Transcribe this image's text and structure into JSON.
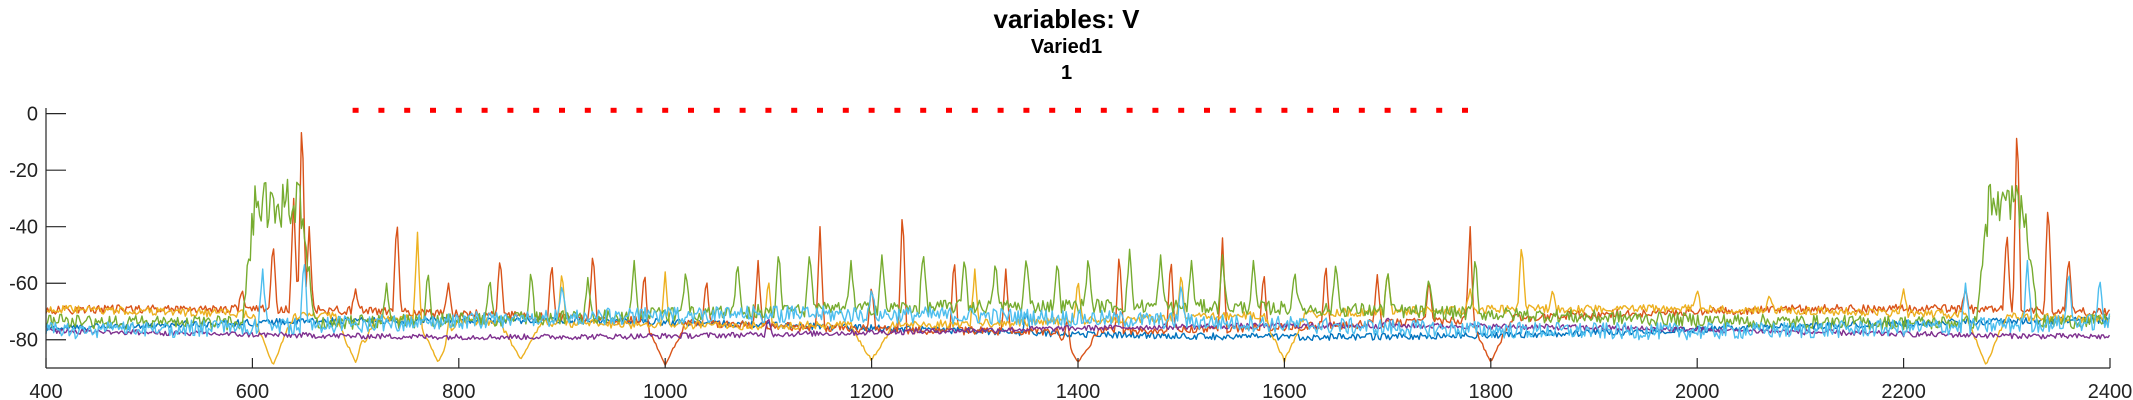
{
  "chart_data": {
    "type": "line",
    "title": "variables: V",
    "subtitle": "Varied1",
    "subtitle2": "1",
    "xlabel": "",
    "ylabel": "",
    "xlim": [
      400,
      2400
    ],
    "ylim": [
      -90,
      2
    ],
    "x_ticks": [
      400,
      600,
      800,
      1000,
      1200,
      1400,
      1600,
      1800,
      2000,
      2200,
      2400
    ],
    "y_ticks": [
      0,
      -20,
      -40,
      -60,
      -80
    ],
    "grid": false,
    "legend": "none",
    "stimulus_markers": {
      "color": "#ff0000",
      "y": 1,
      "start": 700,
      "end": 1780,
      "step": 25
    },
    "series": [
      {
        "color": "#0072bd",
        "baseline": -76,
        "drift": 3,
        "noise": 1.2,
        "bursts": [],
        "spikes": [
          [
            880,
            -72
          ],
          [
            1350,
            -70
          ]
        ]
      },
      {
        "color": "#d95319",
        "baseline": -73,
        "drift": 4,
        "noise": 1.5,
        "bursts": [],
        "spikes": [
          [
            590,
            -62
          ],
          [
            620,
            -45
          ],
          [
            640,
            -30
          ],
          [
            648,
            2
          ],
          [
            655,
            -40
          ],
          [
            700,
            -62
          ],
          [
            740,
            -36
          ],
          [
            790,
            -60
          ],
          [
            840,
            -50
          ],
          [
            890,
            -52
          ],
          [
            930,
            -48
          ],
          [
            980,
            -55
          ],
          [
            1040,
            -58
          ],
          [
            1090,
            -52
          ],
          [
            1150,
            -40
          ],
          [
            1200,
            -60
          ],
          [
            1230,
            -32
          ],
          [
            1280,
            -50
          ],
          [
            1330,
            -55
          ],
          [
            1390,
            -58
          ],
          [
            1440,
            -48
          ],
          [
            1490,
            -50
          ],
          [
            1540,
            -44
          ],
          [
            1580,
            -55
          ],
          [
            1640,
            -52
          ],
          [
            1690,
            -57
          ],
          [
            1740,
            -58
          ],
          [
            1780,
            -40
          ],
          [
            2260,
            -62
          ],
          [
            2300,
            -40
          ],
          [
            2310,
            0
          ],
          [
            2340,
            -30
          ],
          [
            2360,
            -50
          ]
        ],
        "dips": [
          [
            1000,
            -89
          ],
          [
            1400,
            -88
          ],
          [
            1800,
            -88
          ]
        ]
      },
      {
        "color": "#edb120",
        "baseline": -72,
        "drift": 3,
        "noise": 1.5,
        "bursts": [],
        "spikes": [
          [
            705,
            -60
          ],
          [
            760,
            -42
          ],
          [
            790,
            -60
          ],
          [
            900,
            -55
          ],
          [
            1000,
            -56
          ],
          [
            1100,
            -58
          ],
          [
            1200,
            -55
          ],
          [
            1300,
            -55
          ],
          [
            1400,
            -58
          ],
          [
            1500,
            -56
          ],
          [
            1600,
            -52
          ],
          [
            1700,
            -55
          ],
          [
            1780,
            -62
          ],
          [
            1830,
            -45
          ],
          [
            1860,
            -62
          ],
          [
            2000,
            -62
          ],
          [
            2070,
            -64
          ],
          [
            2200,
            -62
          ]
        ],
        "dips": [
          [
            620,
            -89
          ],
          [
            700,
            -88
          ],
          [
            780,
            -88
          ],
          [
            860,
            -87
          ],
          [
            1200,
            -88
          ],
          [
            1600,
            -88
          ],
          [
            2280,
            -89
          ]
        ]
      },
      {
        "color": "#7e2f8e",
        "baseline": -77,
        "drift": 2,
        "noise": 1,
        "bursts": [],
        "spikes": [
          [
            1100,
            -72
          ],
          [
            1700,
            -72
          ]
        ]
      },
      {
        "color": "#77ac30",
        "baseline": -71,
        "drift": 3,
        "noise": 2.5,
        "bursts": [
          [
            590,
            660,
            -32
          ],
          [
            2270,
            2330,
            -33
          ]
        ],
        "spikes": [
          [
            730,
            -60
          ],
          [
            770,
            -55
          ],
          [
            830,
            -58
          ],
          [
            870,
            -55
          ],
          [
            925,
            -58
          ],
          [
            970,
            -52
          ],
          [
            1020,
            -55
          ],
          [
            1070,
            -52
          ],
          [
            1110,
            -48
          ],
          [
            1140,
            -48
          ],
          [
            1180,
            -52
          ],
          [
            1210,
            -50
          ],
          [
            1250,
            -48
          ],
          [
            1290,
            -50
          ],
          [
            1320,
            -52
          ],
          [
            1350,
            -50
          ],
          [
            1380,
            -52
          ],
          [
            1410,
            -50
          ],
          [
            1450,
            -48
          ],
          [
            1480,
            -50
          ],
          [
            1510,
            -52
          ],
          [
            1540,
            -50
          ],
          [
            1570,
            -52
          ],
          [
            1610,
            -55
          ],
          [
            1650,
            -52
          ],
          [
            1700,
            -55
          ],
          [
            1740,
            -58
          ],
          [
            1785,
            -50
          ]
        ]
      },
      {
        "color": "#4dbeee",
        "baseline": -74,
        "drift": 3,
        "noise": 3,
        "bursts": [],
        "spikes": [
          [
            610,
            -55
          ],
          [
            650,
            -50
          ],
          [
            900,
            -60
          ],
          [
            1200,
            -62
          ],
          [
            1500,
            -60
          ],
          [
            2260,
            -60
          ],
          [
            2320,
            -52
          ],
          [
            2360,
            -55
          ],
          [
            2390,
            -58
          ]
        ]
      }
    ]
  }
}
